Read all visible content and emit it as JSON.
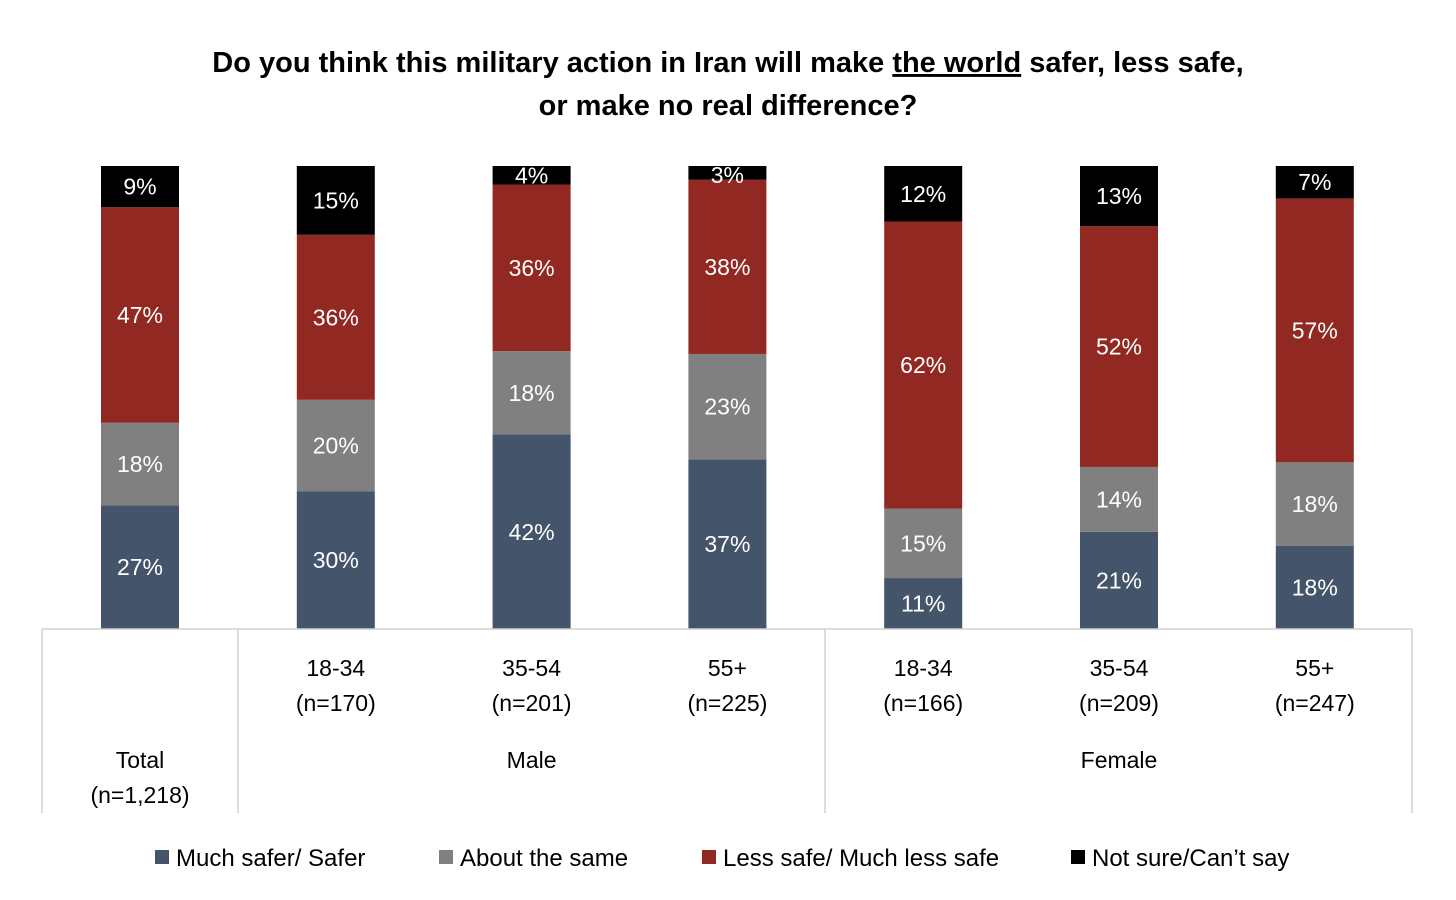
{
  "chart_data": {
    "type": "bar",
    "stacked": true,
    "title_parts": [
      "Do you think this military action in Iran will make ",
      "the world",
      " safer, less safe,"
    ],
    "title_line2": "or make no real difference?",
    "categories": [
      {
        "label": "Total",
        "n": "(n=1,218)",
        "group": ""
      },
      {
        "label": "18-34",
        "n": "(n=170)",
        "group": "Male"
      },
      {
        "label": "35-54",
        "n": "(n=201)",
        "group": "Male"
      },
      {
        "label": "55+",
        "n": "(n=225)",
        "group": "Male"
      },
      {
        "label": "18-34",
        "n": "(n=166)",
        "group": "Female"
      },
      {
        "label": "35-54",
        "n": "(n=209)",
        "group": "Female"
      },
      {
        "label": "55+",
        "n": "(n=247)",
        "group": "Female"
      }
    ],
    "groups": [
      "Male",
      "Female"
    ],
    "series": [
      {
        "name": "Much safer/ Safer",
        "color": "#44546A",
        "values": [
          27,
          30,
          42,
          37,
          11,
          21,
          18
        ]
      },
      {
        "name": "About the same",
        "color": "#808080",
        "values": [
          18,
          20,
          18,
          23,
          15,
          14,
          18
        ]
      },
      {
        "name": "Less safe/ Much less safe",
        "color": "#922822",
        "values": [
          47,
          36,
          36,
          38,
          62,
          52,
          57
        ]
      },
      {
        "name": "Not sure/Can’t say",
        "color": "#000000",
        "values": [
          9,
          15,
          4,
          3,
          12,
          13,
          7
        ]
      }
    ],
    "value_suffix": "%",
    "ylim": [
      0,
      100
    ],
    "legend_position": "bottom"
  }
}
